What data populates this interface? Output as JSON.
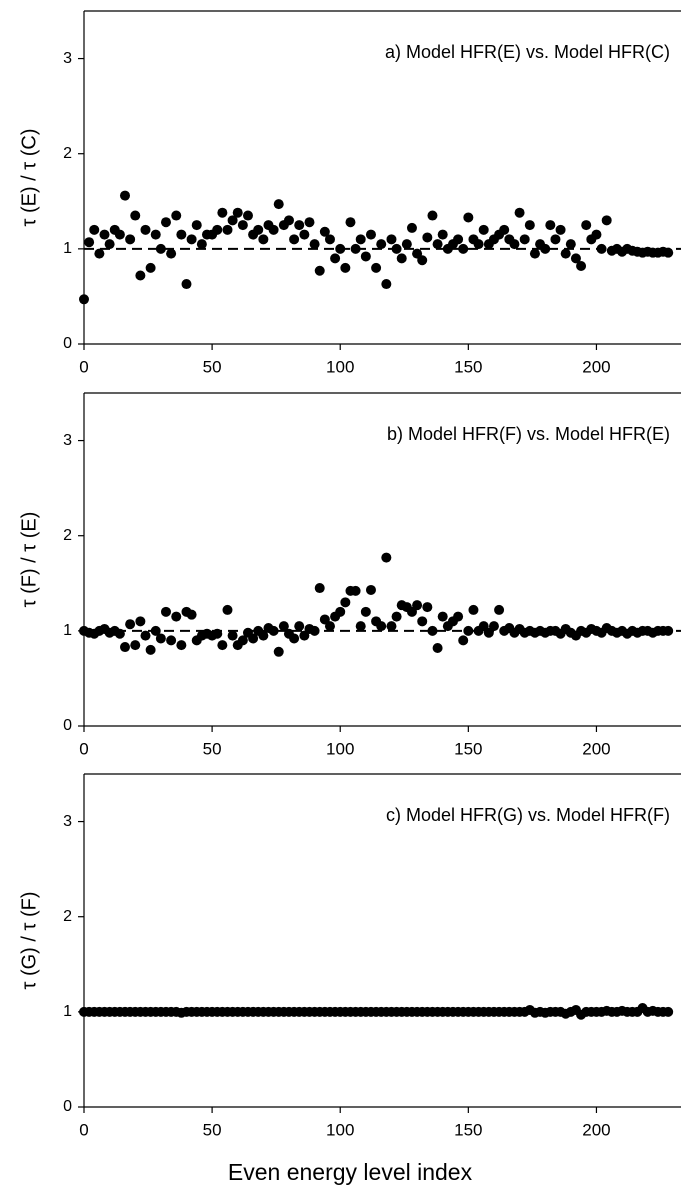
{
  "chart_data": [
    {
      "type": "scatter",
      "annotation": "a) Model HFR(E) vs. Model HFR(C)",
      "ylabel": "τ (E) / τ (C)",
      "color": "#000000",
      "reference_line": 1,
      "xlim": [
        0,
        233
      ],
      "xticks": [
        0,
        50,
        100,
        150,
        200
      ],
      "ylim": [
        0,
        3.5
      ],
      "yticks": [
        0,
        1,
        2,
        3
      ],
      "x": [
        0,
        2,
        4,
        6,
        8,
        10,
        12,
        14,
        16,
        18,
        20,
        22,
        24,
        26,
        28,
        30,
        32,
        34,
        36,
        38,
        40,
        42,
        44,
        46,
        48,
        50,
        52,
        54,
        56,
        58,
        60,
        62,
        64,
        66,
        68,
        70,
        72,
        74,
        76,
        78,
        80,
        82,
        84,
        86,
        88,
        90,
        92,
        94,
        96,
        98,
        100,
        102,
        104,
        106,
        108,
        110,
        112,
        114,
        116,
        118,
        120,
        122,
        124,
        126,
        128,
        130,
        132,
        134,
        136,
        138,
        140,
        142,
        144,
        146,
        148,
        150,
        152,
        154,
        156,
        158,
        160,
        162,
        164,
        166,
        168,
        170,
        172,
        174,
        176,
        178,
        180,
        182,
        184,
        186,
        188,
        190,
        192,
        194,
        196,
        198,
        200,
        202,
        204,
        206,
        208,
        210,
        212,
        214,
        216,
        218,
        220,
        222,
        224,
        226,
        228
      ],
      "values": [
        0.47,
        1.07,
        1.2,
        0.95,
        1.15,
        1.05,
        1.2,
        1.15,
        1.56,
        1.1,
        1.35,
        0.72,
        1.2,
        0.8,
        1.15,
        1.0,
        1.28,
        0.95,
        1.35,
        1.15,
        0.63,
        1.1,
        1.25,
        1.05,
        1.15,
        1.15,
        1.2,
        1.38,
        1.2,
        1.3,
        1.38,
        1.25,
        1.35,
        1.15,
        1.2,
        1.1,
        1.25,
        1.2,
        1.47,
        1.25,
        1.3,
        1.1,
        1.25,
        1.15,
        1.28,
        1.05,
        0.77,
        1.18,
        1.1,
        0.9,
        1.0,
        0.8,
        1.28,
        1.0,
        1.1,
        0.92,
        1.15,
        0.8,
        1.05,
        0.63,
        1.1,
        1.0,
        0.9,
        1.05,
        1.22,
        0.95,
        0.88,
        1.12,
        1.35,
        1.05,
        1.15,
        1.0,
        1.05,
        1.1,
        1.0,
        1.33,
        1.1,
        1.05,
        1.2,
        1.05,
        1.1,
        1.15,
        1.2,
        1.1,
        1.05,
        1.38,
        1.1,
        1.25,
        0.95,
        1.05,
        1.0,
        1.25,
        1.1,
        1.2,
        0.95,
        1.05,
        0.9,
        0.82,
        1.25,
        1.1,
        1.15,
        1.0,
        1.3,
        0.98,
        1.0,
        0.97,
        1.0,
        0.98,
        0.97,
        0.96,
        0.97,
        0.96,
        0.96,
        0.97,
        0.96
      ]
    },
    {
      "type": "scatter",
      "annotation": "b) Model HFR(F) vs. Model HFR(E)",
      "ylabel": "τ (F) / τ (E)",
      "color": "#000000",
      "reference_line": 1,
      "xlim": [
        0,
        233
      ],
      "xticks": [
        0,
        50,
        100,
        150,
        200
      ],
      "ylim": [
        0,
        3.5
      ],
      "yticks": [
        0,
        1,
        2,
        3
      ],
      "x": [
        0,
        2,
        4,
        6,
        8,
        10,
        12,
        14,
        16,
        18,
        20,
        22,
        24,
        26,
        28,
        30,
        32,
        34,
        36,
        38,
        40,
        42,
        44,
        46,
        48,
        50,
        52,
        54,
        56,
        58,
        60,
        62,
        64,
        66,
        68,
        70,
        72,
        74,
        76,
        78,
        80,
        82,
        84,
        86,
        88,
        90,
        92,
        94,
        96,
        98,
        100,
        102,
        104,
        106,
        108,
        110,
        112,
        114,
        116,
        118,
        120,
        122,
        124,
        126,
        128,
        130,
        132,
        134,
        136,
        138,
        140,
        142,
        144,
        146,
        148,
        150,
        152,
        154,
        156,
        158,
        160,
        162,
        164,
        166,
        168,
        170,
        172,
        174,
        176,
        178,
        180,
        182,
        184,
        186,
        188,
        190,
        192,
        194,
        196,
        198,
        200,
        202,
        204,
        206,
        208,
        210,
        212,
        214,
        216,
        218,
        220,
        222,
        224,
        226,
        228
      ],
      "values": [
        1.0,
        0.98,
        0.97,
        1.0,
        1.02,
        0.98,
        1.0,
        0.97,
        0.83,
        1.07,
        0.85,
        1.1,
        0.95,
        0.8,
        1.0,
        0.92,
        1.2,
        0.9,
        1.15,
        0.85,
        1.2,
        1.17,
        0.9,
        0.95,
        0.97,
        0.95,
        0.97,
        0.85,
        1.22,
        0.95,
        0.85,
        0.9,
        0.98,
        0.92,
        1.0,
        0.95,
        1.03,
        1.0,
        0.78,
        1.05,
        0.97,
        0.92,
        1.05,
        0.95,
        1.02,
        1.0,
        1.45,
        1.12,
        1.05,
        1.15,
        1.2,
        1.3,
        1.42,
        1.42,
        1.05,
        1.2,
        1.43,
        1.1,
        1.05,
        1.77,
        1.05,
        1.15,
        1.27,
        1.25,
        1.2,
        1.27,
        1.1,
        1.25,
        1.0,
        0.82,
        1.15,
        1.05,
        1.1,
        1.15,
        0.9,
        1.0,
        1.22,
        1.0,
        1.05,
        0.98,
        1.05,
        1.22,
        1.0,
        1.03,
        0.98,
        1.02,
        0.98,
        1.0,
        0.98,
        1.0,
        0.98,
        1.0,
        1.0,
        0.97,
        1.02,
        0.98,
        0.95,
        1.0,
        0.98,
        1.02,
        1.0,
        0.98,
        1.03,
        1.0,
        0.98,
        1.0,
        0.97,
        1.0,
        0.98,
        1.0,
        1.0,
        0.98,
        1.0,
        1.0,
        1.0
      ]
    },
    {
      "type": "scatter",
      "annotation": "c) Model HFR(G) vs. Model HFR(F)",
      "ylabel": "τ (G) / τ (F)",
      "xlabel": "Even energy level index",
      "color": "#000000",
      "xlim": [
        0,
        233
      ],
      "xticks": [
        0,
        50,
        100,
        150,
        200
      ],
      "ylim": [
        0,
        3.5
      ],
      "yticks": [
        0,
        1,
        2,
        3
      ],
      "x": [
        0,
        2,
        4,
        6,
        8,
        10,
        12,
        14,
        16,
        18,
        20,
        22,
        24,
        26,
        28,
        30,
        32,
        34,
        36,
        38,
        40,
        42,
        44,
        46,
        48,
        50,
        52,
        54,
        56,
        58,
        60,
        62,
        64,
        66,
        68,
        70,
        72,
        74,
        76,
        78,
        80,
        82,
        84,
        86,
        88,
        90,
        92,
        94,
        96,
        98,
        100,
        102,
        104,
        106,
        108,
        110,
        112,
        114,
        116,
        118,
        120,
        122,
        124,
        126,
        128,
        130,
        132,
        134,
        136,
        138,
        140,
        142,
        144,
        146,
        148,
        150,
        152,
        154,
        156,
        158,
        160,
        162,
        164,
        166,
        168,
        170,
        172,
        174,
        176,
        178,
        180,
        182,
        184,
        186,
        188,
        190,
        192,
        194,
        196,
        198,
        200,
        202,
        204,
        206,
        208,
        210,
        212,
        214,
        216,
        218,
        220,
        222,
        224,
        226,
        228
      ],
      "values": [
        1.0,
        1.0,
        1.0,
        1.0,
        1.0,
        1.0,
        1.0,
        1.0,
        1.0,
        1.0,
        1.0,
        1.0,
        1.0,
        1.0,
        1.0,
        1.0,
        1.0,
        1.0,
        1.0,
        0.99,
        1.0,
        1.0,
        1.0,
        1.0,
        1.0,
        1.0,
        1.0,
        1.0,
        1.0,
        1.0,
        1.0,
        1.0,
        1.0,
        1.0,
        1.0,
        1.0,
        1.0,
        1.0,
        1.0,
        1.0,
        1.0,
        1.0,
        1.0,
        1.0,
        1.0,
        1.0,
        1.0,
        1.0,
        1.0,
        1.0,
        1.0,
        1.0,
        1.0,
        1.0,
        1.0,
        1.0,
        1.0,
        1.0,
        1.0,
        1.0,
        1.0,
        1.0,
        1.0,
        1.0,
        1.0,
        1.0,
        1.0,
        1.0,
        1.0,
        1.0,
        1.0,
        1.0,
        1.0,
        1.0,
        1.0,
        1.0,
        1.0,
        1.0,
        1.0,
        1.0,
        1.0,
        1.0,
        1.0,
        1.0,
        1.0,
        1.0,
        1.0,
        1.02,
        0.99,
        1.0,
        0.99,
        1.0,
        1.0,
        1.0,
        0.98,
        1.0,
        1.02,
        0.97,
        1.0,
        1.0,
        1.0,
        1.0,
        1.01,
        1.0,
        1.0,
        1.01,
        1.0,
        1.0,
        1.0,
        1.04,
        1.0,
        1.01,
        1.0,
        1.0,
        1.0
      ]
    }
  ]
}
